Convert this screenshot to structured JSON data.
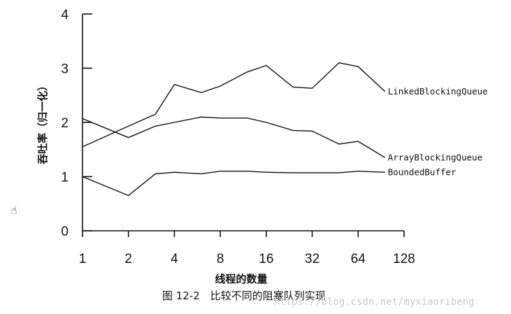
{
  "chart_data": {
    "type": "line",
    "x": [
      1,
      2,
      3,
      4,
      6,
      8,
      12,
      16,
      24,
      32,
      48,
      64,
      96
    ],
    "x_ticks": [
      1,
      2,
      4,
      8,
      16,
      32,
      64,
      128
    ],
    "x_tick_labels": [
      "1",
      "2",
      "4",
      "8",
      "16",
      "32",
      "64",
      "128"
    ],
    "x_scale": "log2",
    "xlim": [
      1,
      128
    ],
    "ylim": [
      0,
      4
    ],
    "y_ticks": [
      0,
      1,
      2,
      3,
      4
    ],
    "y_tick_labels": [
      "0",
      "1",
      "2",
      "3",
      "4"
    ],
    "xlabel": "线程的数量",
    "ylabel": "吞吐率（归一化）",
    "grid": false,
    "legend": "inline at line ends",
    "series": [
      {
        "name": "LinkedBlockingQueue",
        "values": [
          1.55,
          1.93,
          2.15,
          2.7,
          2.55,
          2.67,
          2.93,
          3.05,
          2.65,
          2.63,
          3.1,
          3.03,
          2.57
        ]
      },
      {
        "name": "ArrayBlockingQueue",
        "values": [
          2.07,
          1.72,
          1.93,
          2.0,
          2.1,
          2.08,
          2.08,
          2.0,
          1.85,
          1.84,
          1.6,
          1.65,
          1.35
        ]
      },
      {
        "name": "BoundedBuffer",
        "values": [
          1.0,
          0.65,
          1.05,
          1.08,
          1.05,
          1.1,
          1.1,
          1.08,
          1.07,
          1.07,
          1.07,
          1.1,
          1.08
        ]
      }
    ]
  },
  "caption": "图 12-2　比较不同的阻塞队列实现",
  "watermark": "https://blog.csdn.net/myxiaoribeng"
}
